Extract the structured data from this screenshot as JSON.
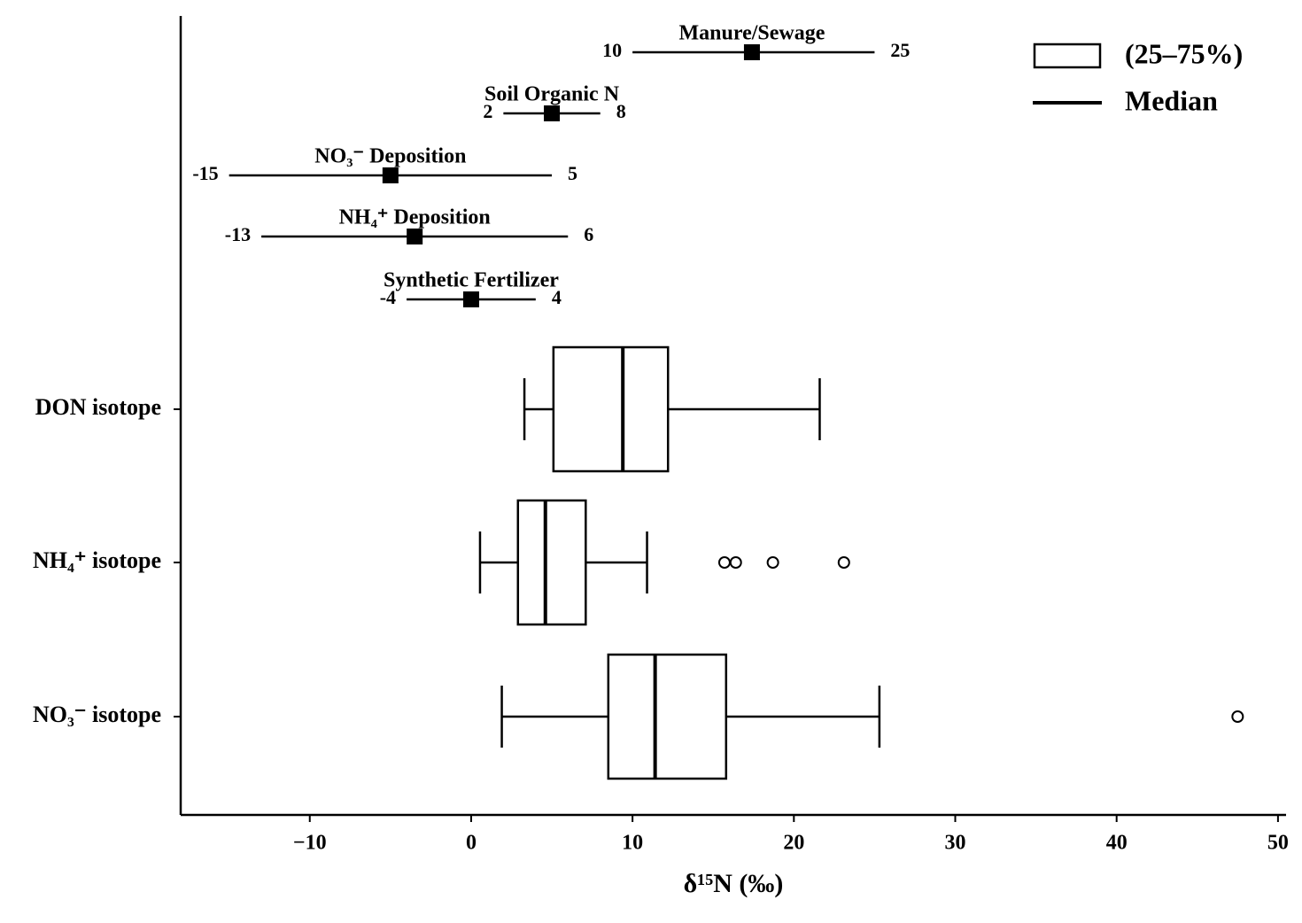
{
  "chart_data": {
    "type": "boxplot",
    "xlabel": "δ¹⁵N (‰)",
    "xlim": [
      -18,
      50.5
    ],
    "xticks": [
      {
        "value": -10,
        "label": "−10"
      },
      0,
      10,
      20,
      30,
      40,
      50
    ],
    "grid": false,
    "categories": [
      "DON isotope",
      "NH₄⁺ isotope",
      "NO₃⁻ isotope"
    ],
    "boxes": [
      {
        "whislo": 3.3,
        "q1": 5.1,
        "med": 9.4,
        "q3": 12.2,
        "whishi": 21.6,
        "fliers": []
      },
      {
        "whislo": 0.55,
        "q1": 2.9,
        "med": 4.6,
        "q3": 7.1,
        "whishi": 10.9,
        "fliers": [
          15.7,
          16.4,
          18.7,
          23.1
        ]
      },
      {
        "whislo": 1.9,
        "q1": 8.5,
        "med": 11.4,
        "q3": 15.8,
        "whishi": 25.3,
        "fliers": [
          47.5
        ]
      }
    ],
    "sources": [
      {
        "name": "Manure/Sewage",
        "min": 10,
        "max": 25,
        "median": 17.4
      },
      {
        "name": "Soil Organic N",
        "min": 2,
        "max": 8,
        "median": 5
      },
      {
        "name": "NO₃⁻ Deposition",
        "min": -15,
        "max": 5,
        "median": -5
      },
      {
        "name": "NH₄⁺ Deposition",
        "min": -13,
        "max": 6,
        "median": -3.5
      },
      {
        "name": "Synthetic Fertilizer",
        "min": -4,
        "max": 4,
        "median": 0
      }
    ],
    "legend": {
      "position": "upper right",
      "box_label": "(25–75%)",
      "median_label": "Median"
    }
  }
}
